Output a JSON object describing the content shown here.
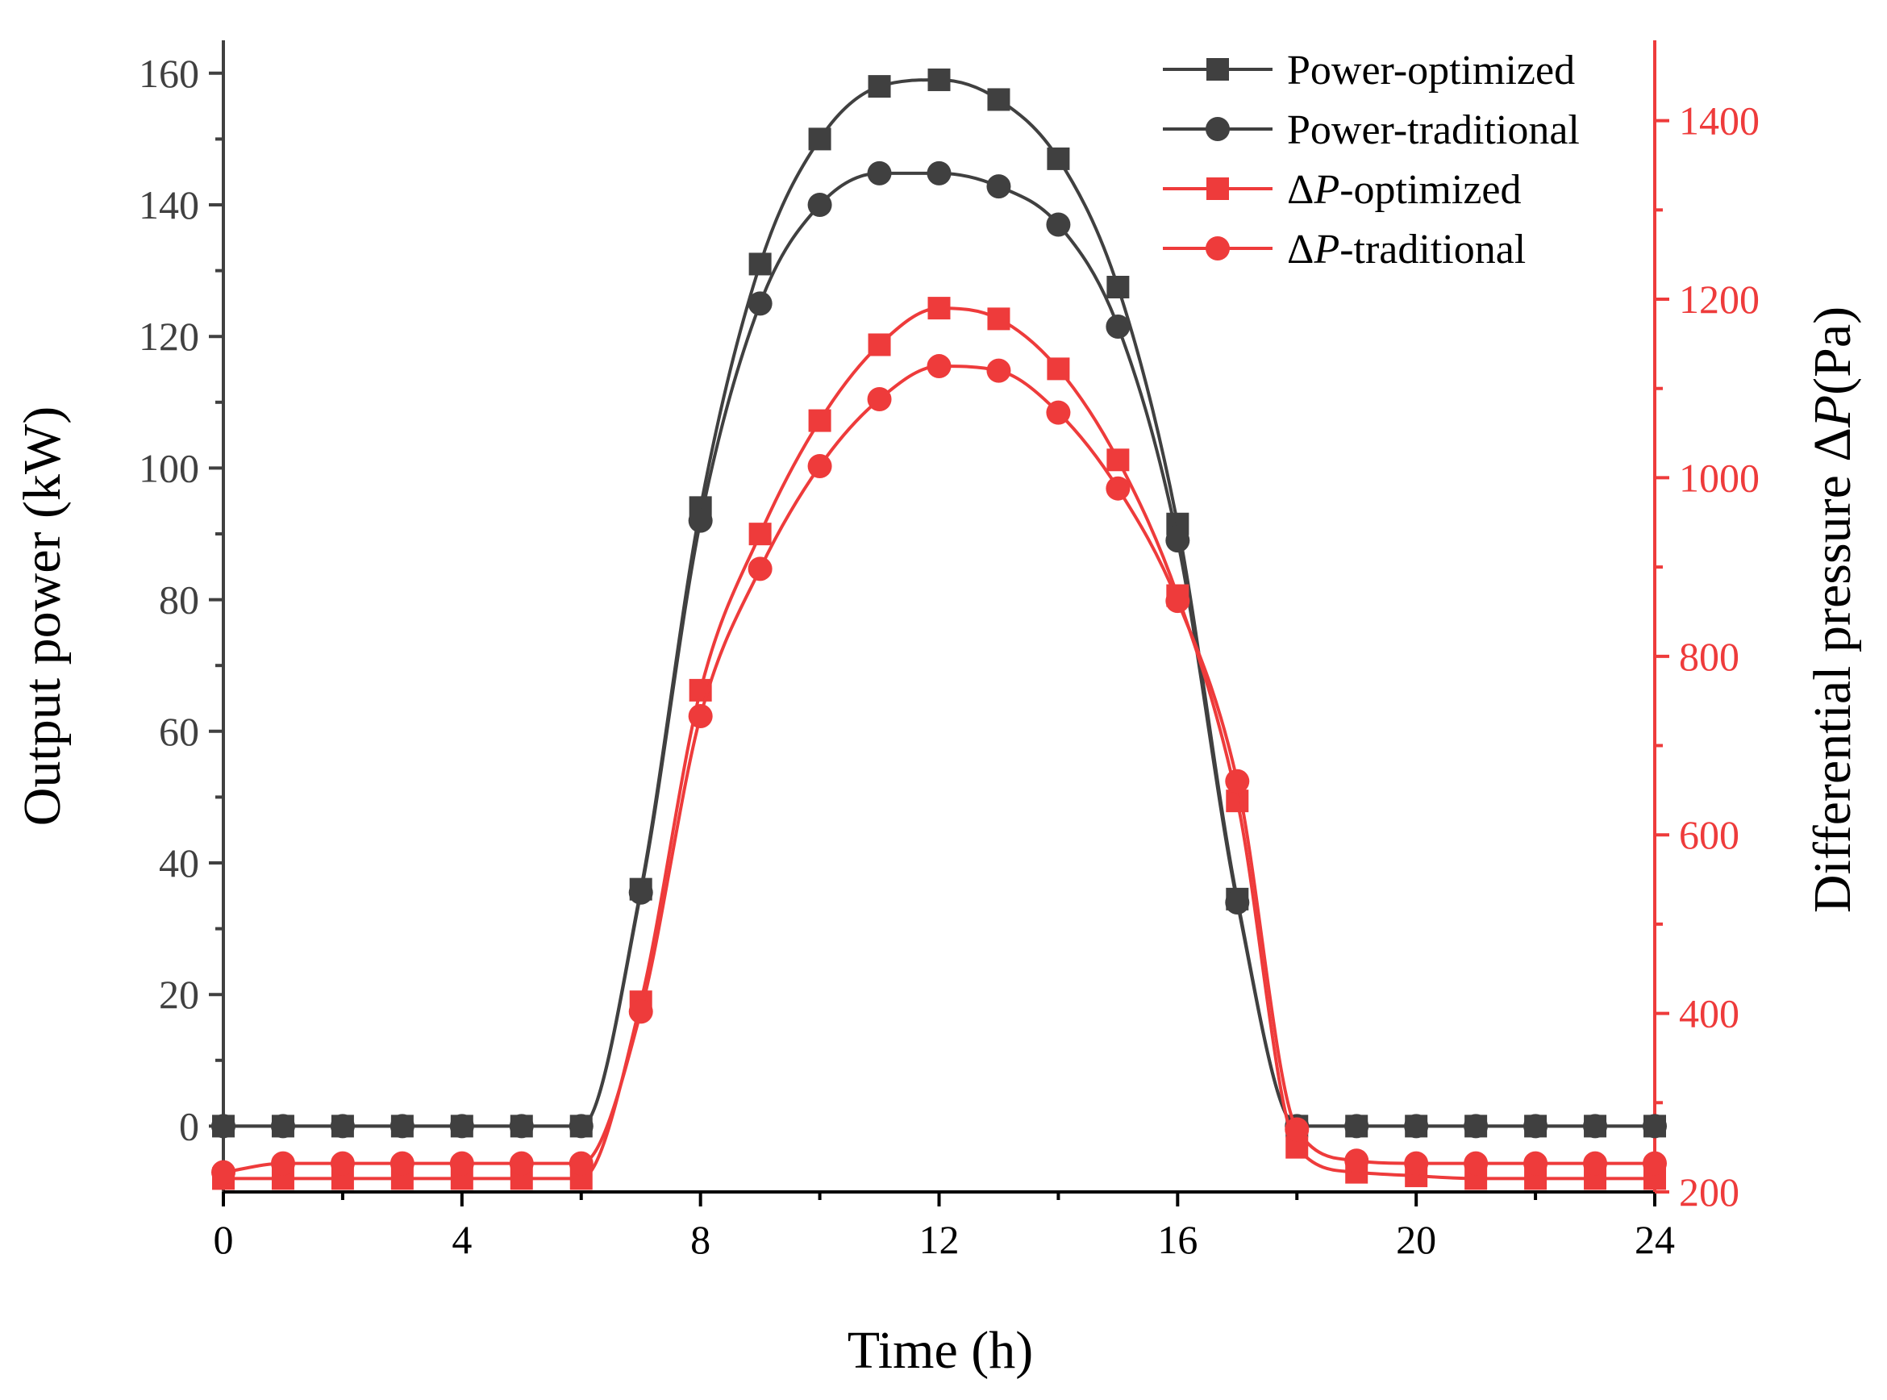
{
  "chart_data": {
    "type": "line",
    "xlabel": "Time (h)",
    "ylabel_left": "Output power (kW)",
    "ylabel_right": {
      "prefix": "Differential pressure Δ",
      "italic": "P",
      "suffix": "(Pa)"
    },
    "xlim": [
      0,
      24
    ],
    "ylim_left": [
      -10,
      165
    ],
    "ylim_right": [
      200,
      1490
    ],
    "x_ticks": [
      0,
      4,
      8,
      12,
      16,
      20,
      24
    ],
    "y_left_ticks": [
      0,
      20,
      40,
      60,
      80,
      100,
      120,
      140,
      160
    ],
    "y_right_ticks": [
      200,
      400,
      600,
      800,
      1000,
      1200,
      1400
    ],
    "legend_position": "top-right",
    "colors": {
      "power": "#404040",
      "dp": "#ee3b3b"
    },
    "x": [
      0,
      1,
      2,
      3,
      4,
      5,
      6,
      7,
      8,
      9,
      10,
      11,
      12,
      13,
      14,
      15,
      16,
      17,
      18,
      19,
      20,
      21,
      22,
      23,
      24
    ],
    "series": [
      {
        "name": "Power-optimized",
        "legend": {
          "prefix": "",
          "italic": "",
          "suffix": "Power-optimized"
        },
        "axis": "left",
        "marker": "square",
        "color": "#404040",
        "values": [
          0,
          0,
          0,
          0,
          0,
          0,
          0,
          36,
          94,
          131,
          150,
          158,
          159,
          156,
          147,
          127.5,
          91.5,
          34.5,
          0,
          0,
          0,
          0,
          0,
          0,
          0
        ]
      },
      {
        "name": "Power-traditional",
        "legend": {
          "prefix": "",
          "italic": "",
          "suffix": "Power-traditional"
        },
        "axis": "left",
        "marker": "circle",
        "color": "#404040",
        "values": [
          0,
          0,
          0,
          0,
          0,
          0,
          0,
          35.5,
          92,
          125,
          140,
          144.8,
          144.8,
          142.8,
          137,
          121.5,
          89,
          34,
          0,
          0,
          0,
          0,
          0,
          0,
          0
        ]
      },
      {
        "name": "ΔP-optimized",
        "legend": {
          "prefix": "Δ",
          "italic": "P",
          "suffix": "-optimized"
        },
        "axis": "right",
        "marker": "square",
        "color": "#ee3b3b",
        "values": [
          215,
          215,
          215,
          215,
          215,
          215,
          215,
          413,
          762,
          937,
          1064,
          1149,
          1190,
          1178,
          1122,
          1020,
          868,
          638,
          250,
          222,
          218,
          215,
          215,
          215,
          215
        ]
      },
      {
        "name": "ΔP-traditional",
        "legend": {
          "prefix": "Δ",
          "italic": "P",
          "suffix": "-traditional"
        },
        "axis": "right",
        "marker": "circle",
        "color": "#ee3b3b",
        "values": [
          222,
          232,
          232,
          232,
          232,
          232,
          232,
          402,
          733,
          898,
          1013,
          1088,
          1125,
          1120,
          1073,
          988,
          862,
          660,
          270,
          235,
          232,
          232,
          232,
          232,
          232
        ]
      }
    ]
  }
}
